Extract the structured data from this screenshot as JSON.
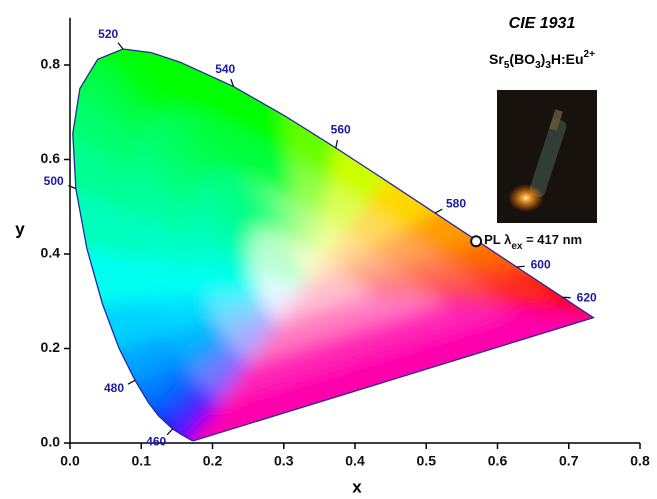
{
  "chart_data": {
    "type": "scatter",
    "title": "CIE 1931",
    "formula": [
      "Sr",
      "5",
      "(BO",
      "3",
      ")",
      "3",
      "H:Eu",
      "2+"
    ],
    "point_label": [
      "PL λ",
      "ex",
      " = 417 nm"
    ],
    "x_label": "x",
    "y_label": "y",
    "xlim": [
      0,
      0.8
    ],
    "ylim": [
      0,
      0.9
    ],
    "xticks": [
      {
        "value": 0,
        "label": "0.0"
      },
      {
        "value": 0.1,
        "label": "0.1"
      },
      {
        "value": 0.2,
        "label": "0.2"
      },
      {
        "value": 0.3,
        "label": "0.3"
      },
      {
        "value": 0.4,
        "label": "0.4"
      },
      {
        "value": 0.5,
        "label": "0.5"
      },
      {
        "value": 0.6,
        "label": "0.6"
      },
      {
        "value": 0.7,
        "label": "0.7"
      },
      {
        "value": 0.8,
        "label": "0.8"
      }
    ],
    "yticks": [
      {
        "value": 0,
        "label": "0.0"
      },
      {
        "value": 0.2,
        "label": "0.2"
      },
      {
        "value": 0.4,
        "label": "0.4"
      },
      {
        "value": 0.6,
        "label": "0.6"
      },
      {
        "value": 0.8,
        "label": "0.8"
      }
    ],
    "x": [
      0.57
    ],
    "values": [
      0.427
    ],
    "locus_x": [
      0.1741,
      0.1714,
      0.1644,
      0.1566,
      0.144,
      0.1241,
      0.1096,
      0.0913,
      0.0687,
      0.0454,
      0.0235,
      0.0082,
      0.0039,
      0.0139,
      0.0389,
      0.0743,
      0.1142,
      0.1547,
      0.2296,
      0.3016,
      0.3731,
      0.4441,
      0.5125,
      0.5752,
      0.627,
      0.6915,
      0.719,
      0.7347
    ],
    "locus_y": [
      0.005,
      0.0051,
      0.0109,
      0.0177,
      0.0297,
      0.0578,
      0.0868,
      0.1327,
      0.2007,
      0.295,
      0.4127,
      0.5384,
      0.6548,
      0.7502,
      0.812,
      0.8338,
      0.8262,
      0.8059,
      0.7543,
      0.6923,
      0.6245,
      0.5547,
      0.4866,
      0.4242,
      0.3725,
      0.3083,
      0.2809,
      0.2653
    ],
    "wavelength_marks": [
      {
        "value": 460,
        "x": 0.144,
        "y": 0.0297
      },
      {
        "value": 480,
        "x": 0.0913,
        "y": 0.1327
      },
      {
        "value": 500,
        "x": 0.0082,
        "y": 0.5384
      },
      {
        "value": 520,
        "x": 0.0743,
        "y": 0.8338
      },
      {
        "value": 540,
        "x": 0.2296,
        "y": 0.7543
      },
      {
        "value": 560,
        "x": 0.3731,
        "y": 0.6245
      },
      {
        "value": 580,
        "x": 0.5125,
        "y": 0.4866
      },
      {
        "value": 600,
        "x": 0.627,
        "y": 0.3725
      },
      {
        "value": 620,
        "x": 0.6915,
        "y": 0.3083
      }
    ],
    "marker_color": "#ffffff"
  }
}
